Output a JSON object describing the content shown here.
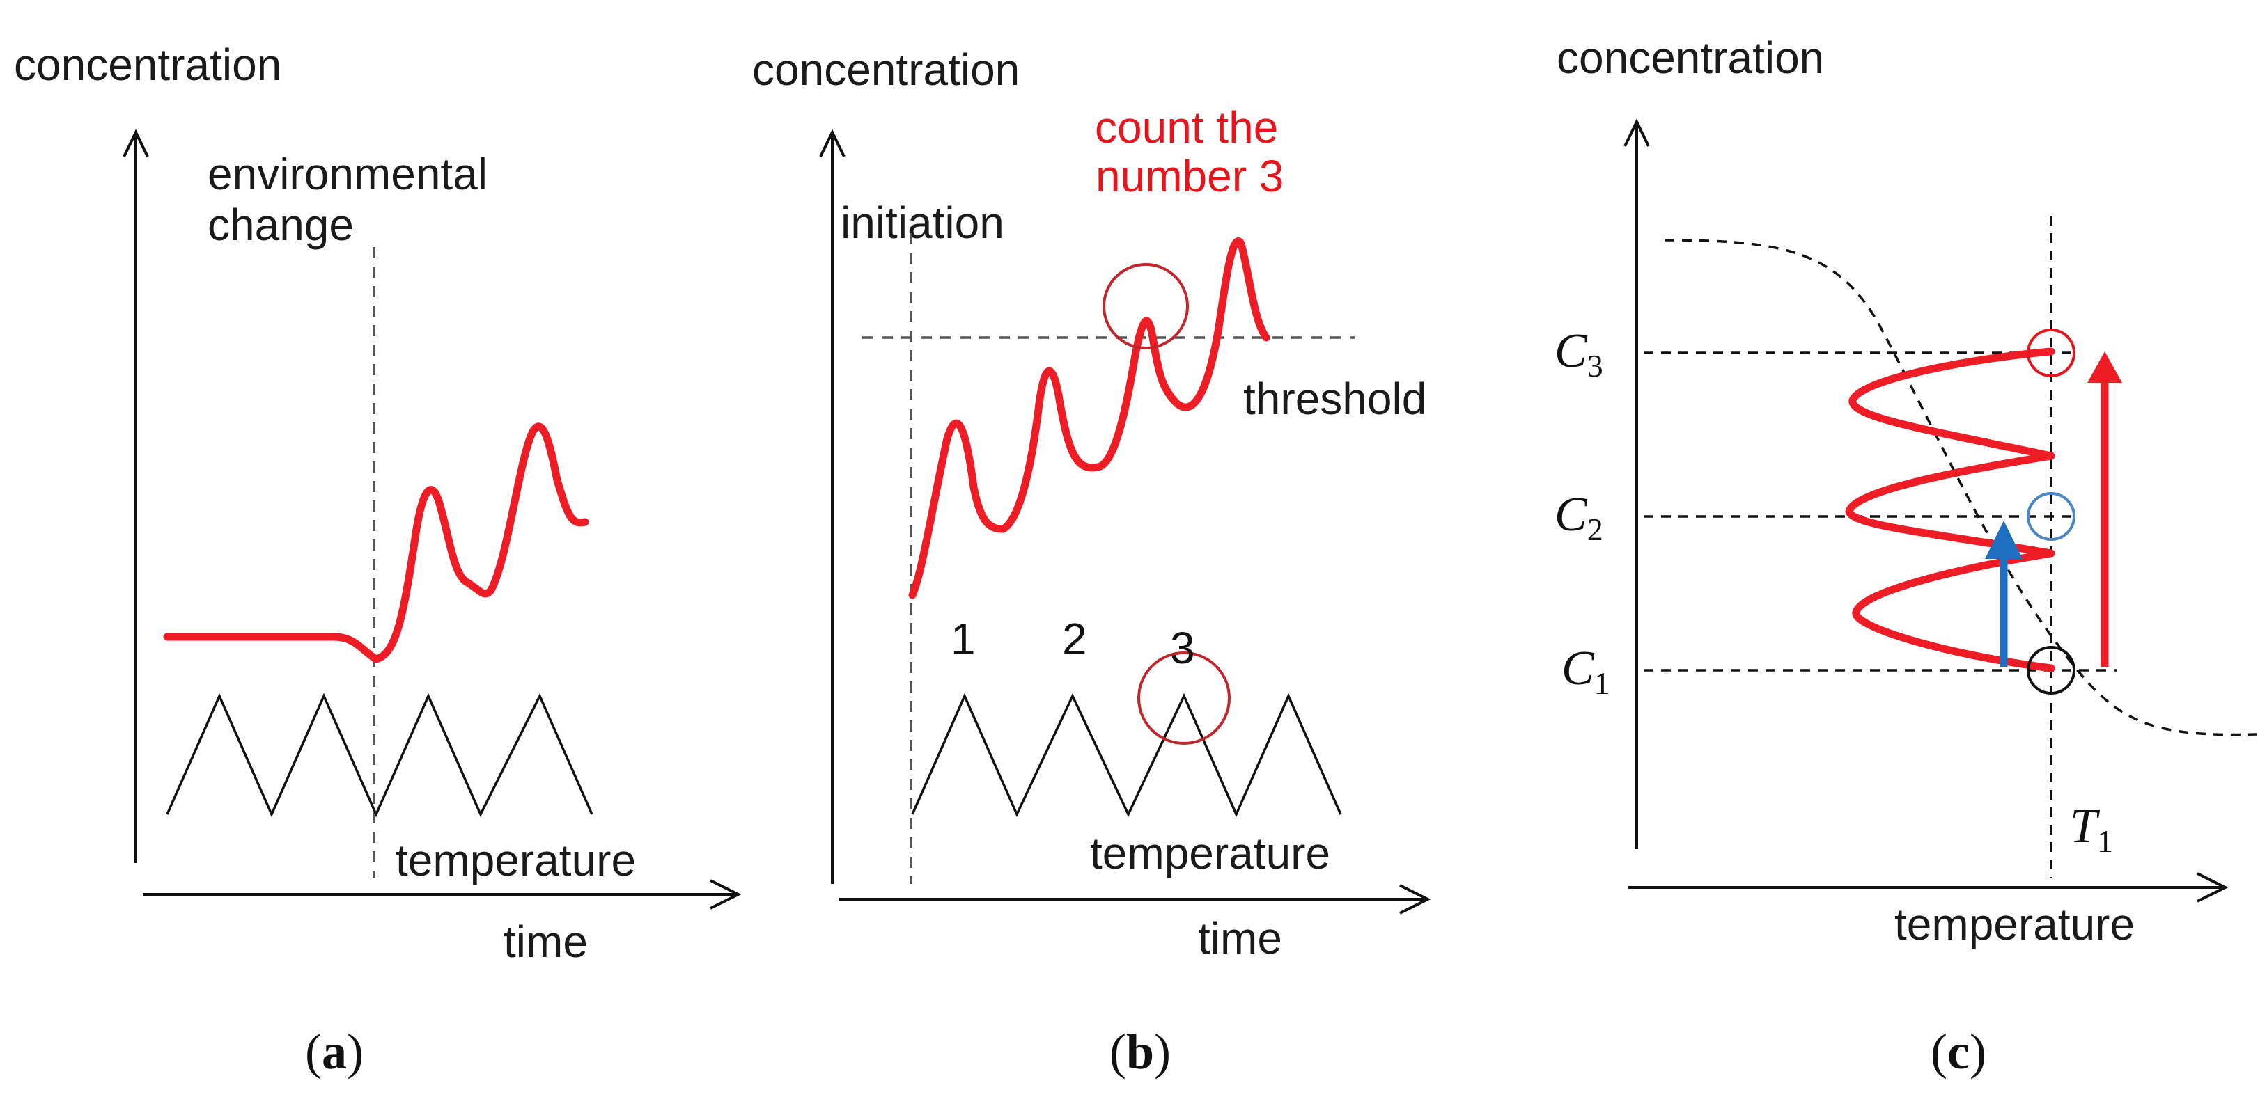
{
  "panels": {
    "a": {
      "ylabel": "concentration",
      "annotation_line1": "environmental",
      "annotation_line2": "change",
      "temperature_label": "temperature",
      "xlabel": "time",
      "caption_open": "(",
      "caption_letter": "a",
      "caption_close": ")"
    },
    "b": {
      "ylabel": "concentration",
      "count_line1": "count  the",
      "count_line2": "number 3",
      "initiation_label": "initiation",
      "threshold_label": "threshold",
      "peak_numbers": [
        "1",
        "2",
        "3"
      ],
      "temperature_label": "temperature",
      "xlabel": "time",
      "caption_open": "(",
      "caption_letter": "b",
      "caption_close": ")"
    },
    "c": {
      "ylabel": "concentration",
      "levels": [
        {
          "symbol": "C",
          "subscript": "3"
        },
        {
          "symbol": "C",
          "subscript": "2"
        },
        {
          "symbol": "C",
          "subscript": "1"
        }
      ],
      "t_symbol": "T",
      "t_subscript": "1",
      "xlabel": "temperature",
      "caption_open": "(",
      "caption_letter": "c",
      "caption_close": ")"
    }
  },
  "colors": {
    "curve": "#ee1c24",
    "blue_arrow": "#1f6fc0",
    "blue_circle": "#4a86c8",
    "red_circle": "#c0262c",
    "black_circle": "#111111"
  }
}
